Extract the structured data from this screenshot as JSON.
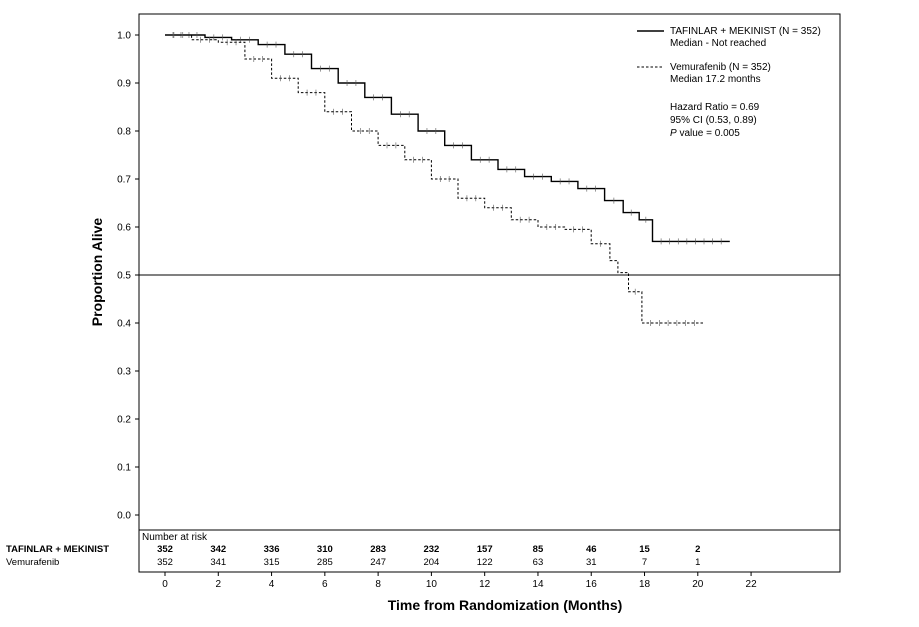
{
  "chart_data": {
    "type": "line",
    "title": "",
    "xlabel": "Time from Randomization (Months)",
    "ylabel": "Proportion Alive",
    "xlim": [
      0,
      22
    ],
    "ylim": [
      0,
      1.0
    ],
    "x_ticks": [
      "0",
      "2",
      "4",
      "6",
      "8",
      "10",
      "12",
      "14",
      "16",
      "18",
      "20",
      "22"
    ],
    "y_ticks": [
      "0.0",
      "0.1",
      "0.2",
      "0.3",
      "0.4",
      "0.5",
      "0.6",
      "0.7",
      "0.8",
      "0.9",
      "1.0"
    ],
    "reference_line": 0.5,
    "series": [
      {
        "name": "TAFINLAR + MEKINIST (N = 352)",
        "style": "solid",
        "color": "#000000",
        "x": [
          0,
          1.5,
          2.5,
          3.5,
          4.5,
          5.5,
          6.5,
          7.5,
          8.5,
          9.5,
          10.5,
          11.5,
          12.5,
          13.5,
          14.5,
          15.5,
          16.5,
          17.2,
          17.8,
          18.3,
          21.2
        ],
        "y": [
          1.0,
          0.995,
          0.99,
          0.98,
          0.96,
          0.93,
          0.9,
          0.87,
          0.835,
          0.8,
          0.77,
          0.74,
          0.72,
          0.705,
          0.695,
          0.68,
          0.655,
          0.63,
          0.615,
          0.57,
          0.57
        ]
      },
      {
        "name": "Vemurafenib (N = 352)",
        "style": "dashed",
        "color": "#000000",
        "x": [
          0,
          1.0,
          2.0,
          3.0,
          4.0,
          5.0,
          6.0,
          7.0,
          8.0,
          9.0,
          10.0,
          11.0,
          12.0,
          13.0,
          14.0,
          15.0,
          16.0,
          16.7,
          17.0,
          17.4,
          17.9,
          20.2
        ],
        "y": [
          1.0,
          0.99,
          0.985,
          0.95,
          0.91,
          0.88,
          0.84,
          0.8,
          0.77,
          0.74,
          0.7,
          0.66,
          0.64,
          0.615,
          0.6,
          0.595,
          0.565,
          0.53,
          0.505,
          0.465,
          0.4,
          0.4
        ]
      }
    ],
    "legend": {
      "placement": "top-right",
      "entries": [
        {
          "label": "TAFINLAR + MEKINIST (N = 352)",
          "sublabel": "Median - Not reached",
          "style": "solid"
        },
        {
          "label": "Vemurafenib (N = 352)",
          "sublabel": "Median 17.2 months",
          "style": "dashed"
        }
      ]
    },
    "annotation": {
      "hazard_ratio": "Hazard Ratio = 0.69",
      "ci": "95% CI (0.53, 0.89)",
      "p_italic": "P",
      "p_rest": " value = 0.005"
    },
    "risk_table": {
      "header": "Number at risk",
      "x": [
        0,
        2,
        4,
        6,
        8,
        10,
        12,
        14,
        16,
        18,
        20
      ],
      "rows": [
        {
          "label": "TAFINLAR + MEKINIST",
          "values": [
            "352",
            "342",
            "336",
            "310",
            "283",
            "232",
            "157",
            "85",
            "46",
            "15",
            "2"
          ]
        },
        {
          "label": "Vemurafenib",
          "values": [
            "352",
            "341",
            "315",
            "285",
            "247",
            "204",
            "122",
            "63",
            "31",
            "7",
            "1"
          ]
        }
      ]
    }
  }
}
